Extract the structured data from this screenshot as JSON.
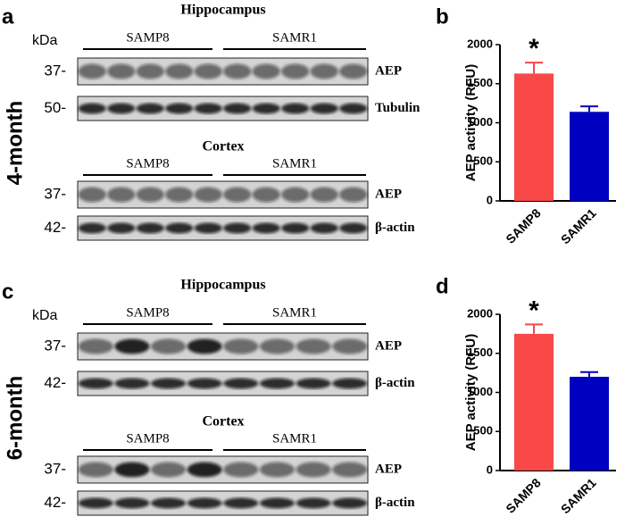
{
  "figure": {
    "panels": [
      {
        "label": "a",
        "age": "4-month",
        "blots": [
          {
            "region": "Hippocampus",
            "unit": "kDa",
            "groups": [
              "SAMP8",
              "SAMR1"
            ],
            "strips": [
              {
                "marker": "37-",
                "protein": "AEP"
              },
              {
                "marker": "50-",
                "protein": "Tubulin"
              }
            ]
          },
          {
            "region": "Cortex",
            "groups": [
              "SAMP8",
              "SAMR1"
            ],
            "strips": [
              {
                "marker": "37-",
                "protein": "AEP"
              },
              {
                "marker": "42-",
                "protein": "β-actin"
              }
            ]
          }
        ]
      },
      {
        "label": "c",
        "age": "6-month",
        "blots": [
          {
            "region": "Hippocampus",
            "unit": "kDa",
            "groups": [
              "SAMP8",
              "SAMR1"
            ],
            "strips": [
              {
                "marker": "37-",
                "protein": "AEP"
              },
              {
                "marker": "42-",
                "protein": "β-actin"
              }
            ]
          },
          {
            "region": "Cortex",
            "groups": [
              "SAMP8",
              "SAMR1"
            ],
            "strips": [
              {
                "marker": "37-",
                "protein": "AEP"
              },
              {
                "marker": "42-",
                "protein": "β-actin"
              }
            ]
          }
        ]
      }
    ]
  },
  "chart_data": [
    {
      "type": "bar",
      "label": "b",
      "ylabel": "AEP activity (RFU)",
      "categories": [
        "SAMP8",
        "SAMR1"
      ],
      "values": [
        1630,
        1140
      ],
      "errors": [
        140,
        70
      ],
      "colors": [
        "#f84848",
        "#0000c0"
      ],
      "ylim": [
        0,
        2000
      ],
      "yticks": [
        0,
        500,
        1000,
        1500,
        2000
      ],
      "annotation": "*"
    },
    {
      "type": "bar",
      "label": "d",
      "ylabel": "AEP activity (RFU)",
      "categories": [
        "SAMP8",
        "SAMR1"
      ],
      "values": [
        1750,
        1200
      ],
      "errors": [
        120,
        60
      ],
      "colors": [
        "#f84848",
        "#0000c0"
      ],
      "ylim": [
        0,
        2000
      ],
      "yticks": [
        0,
        500,
        1000,
        1500,
        2000
      ],
      "annotation": "*"
    }
  ]
}
